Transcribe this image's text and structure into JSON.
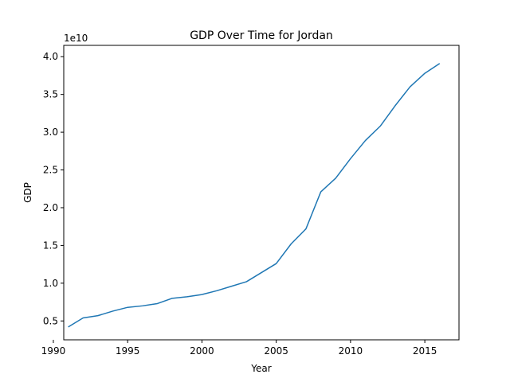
{
  "chart_data": {
    "type": "line",
    "title": "GDP Over Time for Jordan",
    "xlabel": "Year",
    "ylabel": "GDP",
    "y_offset_label": "1e10",
    "xlim": [
      1990.7,
      2017.3
    ],
    "ylim": [
      0.25,
      4.15
    ],
    "y_scale_note": "values in units of 1e10",
    "x_ticks": [
      1990,
      1995,
      2000,
      2005,
      2010,
      2015
    ],
    "y_ticks": [
      0.5,
      1.0,
      1.5,
      2.0,
      2.5,
      3.0,
      3.5,
      4.0
    ],
    "x_tick_labels": [
      "1990",
      "1995",
      "2000",
      "2005",
      "2010",
      "2015"
    ],
    "y_tick_labels": [
      "0.5",
      "1.0",
      "1.5",
      "2.0",
      "2.5",
      "3.0",
      "3.5",
      "4.0"
    ],
    "grid": false,
    "series": [
      {
        "color": "#1f77b4",
        "x": [
          1991,
          1992,
          1993,
          1994,
          1995,
          1996,
          1997,
          1998,
          1999,
          2000,
          2001,
          2002,
          2003,
          2004,
          2005,
          2006,
          2007,
          2008,
          2009,
          2010,
          2011,
          2012,
          2013,
          2014,
          2015,
          2016
        ],
        "y": [
          0.42,
          0.54,
          0.57,
          0.63,
          0.68,
          0.7,
          0.73,
          0.8,
          0.82,
          0.85,
          0.9,
          0.96,
          1.02,
          1.14,
          1.26,
          1.52,
          1.72,
          2.21,
          2.39,
          2.65,
          2.89,
          3.08,
          3.35,
          3.6,
          3.78,
          3.91
        ]
      }
    ]
  }
}
